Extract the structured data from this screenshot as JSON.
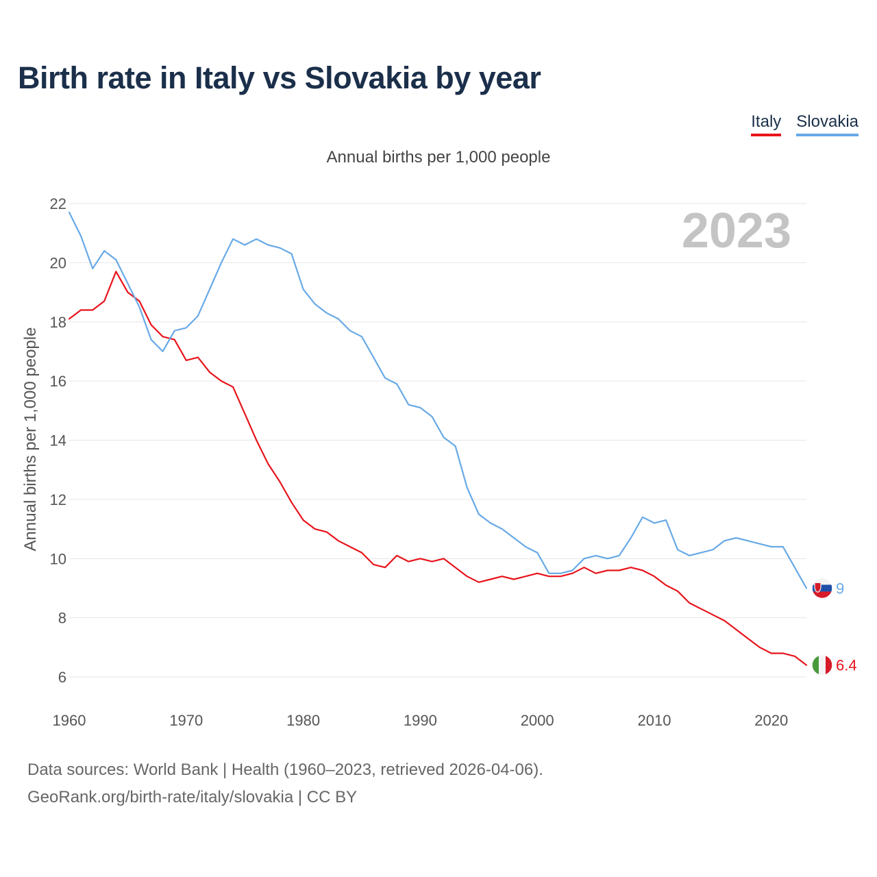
{
  "title": "Birth rate in Italy vs Slovakia by year",
  "legend": {
    "italy": "Italy",
    "slovakia": "Slovakia"
  },
  "subtitle": "Annual births per 1,000 people",
  "source": {
    "line1": "Data sources: World Bank | Health (1960–2023, retrieved 2026-04-06).",
    "line2": "GeoRank.org/birth-rate/italy/slovakia | CC BY"
  },
  "colors": {
    "italy": "#e8131b",
    "slovakia": "#67a9e6",
    "grid": "#e6e6e6",
    "year_watermark": "#c4c4c4"
  },
  "chart_data": {
    "type": "line",
    "title": "Birth rate in Italy vs Slovakia by year",
    "xlabel": "",
    "ylabel": "Annual births per 1,000 people",
    "xlim": [
      1960,
      2023
    ],
    "ylim": [
      5,
      23
    ],
    "x_ticks": [
      1960,
      1970,
      1980,
      1990,
      2000,
      2010,
      2020
    ],
    "y_ticks": [
      6,
      8,
      10,
      12,
      14,
      16,
      18,
      20,
      22
    ],
    "year_label": "2023",
    "series": [
      {
        "name": "Italy",
        "color": "#e8131b",
        "end_label": "6.4",
        "flag_icon": "italy-flag-icon",
        "x": [
          1960,
          1961,
          1962,
          1963,
          1964,
          1965,
          1966,
          1967,
          1968,
          1969,
          1970,
          1971,
          1972,
          1973,
          1974,
          1975,
          1976,
          1977,
          1978,
          1979,
          1980,
          1981,
          1982,
          1983,
          1984,
          1985,
          1986,
          1987,
          1988,
          1989,
          1990,
          1991,
          1992,
          1993,
          1994,
          1995,
          1996,
          1997,
          1998,
          1999,
          2000,
          2001,
          2002,
          2003,
          2004,
          2005,
          2006,
          2007,
          2008,
          2009,
          2010,
          2011,
          2012,
          2013,
          2014,
          2015,
          2016,
          2017,
          2018,
          2019,
          2020,
          2021,
          2022,
          2023
        ],
        "values": [
          18.1,
          18.4,
          18.4,
          18.7,
          19.7,
          19.0,
          18.7,
          17.9,
          17.5,
          17.4,
          16.7,
          16.8,
          16.3,
          16.0,
          15.8,
          14.9,
          14.0,
          13.2,
          12.6,
          11.9,
          11.3,
          11.0,
          10.9,
          10.6,
          10.4,
          10.2,
          9.8,
          9.7,
          10.1,
          9.9,
          10.0,
          9.9,
          10.0,
          9.7,
          9.4,
          9.2,
          9.3,
          9.4,
          9.3,
          9.4,
          9.5,
          9.4,
          9.4,
          9.5,
          9.7,
          9.5,
          9.6,
          9.6,
          9.7,
          9.6,
          9.4,
          9.1,
          8.9,
          8.5,
          8.3,
          8.1,
          7.9,
          7.6,
          7.3,
          7.0,
          6.8,
          6.8,
          6.7,
          6.4
        ]
      },
      {
        "name": "Slovakia",
        "color": "#67a9e6",
        "end_label": "9",
        "flag_icon": "slovakia-flag-icon",
        "x": [
          1960,
          1961,
          1962,
          1963,
          1964,
          1965,
          1966,
          1967,
          1968,
          1969,
          1970,
          1971,
          1972,
          1973,
          1974,
          1975,
          1976,
          1977,
          1978,
          1979,
          1980,
          1981,
          1982,
          1983,
          1984,
          1985,
          1986,
          1987,
          1988,
          1989,
          1990,
          1991,
          1992,
          1993,
          1994,
          1995,
          1996,
          1997,
          1998,
          1999,
          2000,
          2001,
          2002,
          2003,
          2004,
          2005,
          2006,
          2007,
          2008,
          2009,
          2010,
          2011,
          2012,
          2013,
          2014,
          2015,
          2016,
          2017,
          2018,
          2019,
          2020,
          2021,
          2022,
          2023
        ],
        "values": [
          21.7,
          20.9,
          19.8,
          20.4,
          20.1,
          19.3,
          18.5,
          17.4,
          17.0,
          17.7,
          17.8,
          18.2,
          19.1,
          20.0,
          20.8,
          20.6,
          20.8,
          20.6,
          20.5,
          20.3,
          19.1,
          18.6,
          18.3,
          18.1,
          17.7,
          17.5,
          16.8,
          16.1,
          15.9,
          15.2,
          15.1,
          14.8,
          14.1,
          13.8,
          12.4,
          11.5,
          11.2,
          11.0,
          10.7,
          10.4,
          10.2,
          9.5,
          9.5,
          9.6,
          10.0,
          10.1,
          10.0,
          10.1,
          10.7,
          11.4,
          11.2,
          11.3,
          10.3,
          10.1,
          10.2,
          10.3,
          10.6,
          10.7,
          10.6,
          10.5,
          10.4,
          10.4,
          9.7,
          9.0
        ]
      }
    ]
  }
}
